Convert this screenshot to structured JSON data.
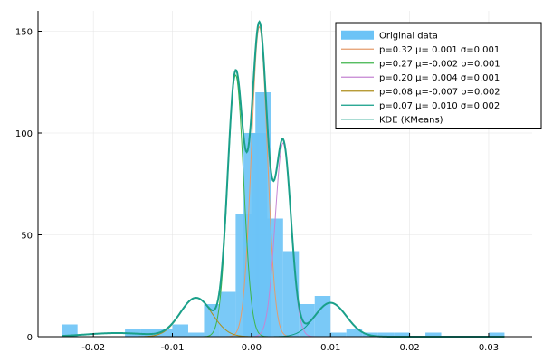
{
  "chart_data": {
    "type": "histogram-with-density",
    "x_ticks": [
      -0.02,
      -0.01,
      0.0,
      0.01,
      0.02,
      0.03
    ],
    "x_tick_labels": [
      "-0.02",
      "-0.01",
      "0.00",
      "0.01",
      "0.02",
      "0.03"
    ],
    "y_ticks": [
      0,
      50,
      100,
      150
    ],
    "y_tick_labels": [
      "0",
      "50",
      "100",
      "150"
    ],
    "xlim": [
      -0.027,
      0.0355
    ],
    "ylim": [
      0,
      160
    ],
    "grid": true,
    "legend_position": "top-right",
    "histogram": {
      "name": "Original data",
      "color": "#6cc3f6",
      "bin_width": 0.002,
      "bins": [
        {
          "x0": -0.024,
          "count": 6
        },
        {
          "x0": -0.016,
          "count": 4
        },
        {
          "x0": -0.014,
          "count": 4
        },
        {
          "x0": -0.012,
          "count": 4
        },
        {
          "x0": -0.01,
          "count": 6
        },
        {
          "x0": -0.008,
          "count": 2
        },
        {
          "x0": -0.006,
          "count": 16
        },
        {
          "x0": -0.004,
          "count": 22
        },
        {
          "x0": -0.002,
          "count": 60
        },
        {
          "x0": -0.001,
          "count": 100
        },
        {
          "x0": 0.0,
          "count": 100
        },
        {
          "x0": 0.0005,
          "count": 120
        },
        {
          "x0": 0.002,
          "count": 58
        },
        {
          "x0": 0.004,
          "count": 42
        },
        {
          "x0": 0.006,
          "count": 16
        },
        {
          "x0": 0.008,
          "count": 20
        },
        {
          "x0": 0.01,
          "count": 2
        },
        {
          "x0": 0.012,
          "count": 4
        },
        {
          "x0": 0.014,
          "count": 2
        },
        {
          "x0": 0.016,
          "count": 2
        },
        {
          "x0": 0.018,
          "count": 2
        },
        {
          "x0": 0.022,
          "count": 2
        },
        {
          "x0": 0.03,
          "count": 2
        }
      ]
    },
    "components": [
      {
        "name": "p=0.32 μ= 0.001 σ=0.001",
        "weight": 0.32,
        "mu": 0.001,
        "sigma": 0.001,
        "color": "#e59c6b"
      },
      {
        "name": "p=0.27 μ=-0.002 σ=0.001",
        "weight": 0.27,
        "mu": -0.002,
        "sigma": 0.001,
        "color": "#3fb54b"
      },
      {
        "name": "p=0.20 μ= 0.004 σ=0.001",
        "weight": 0.2,
        "mu": 0.004,
        "sigma": 0.001,
        "color": "#c585d3"
      },
      {
        "name": "p=0.08 μ=-0.007 σ=0.002",
        "weight": 0.08,
        "mu": -0.007,
        "sigma": 0.002,
        "color": "#ae8e1c"
      },
      {
        "name": "p=0.07 μ= 0.010 σ=0.002",
        "weight": 0.07,
        "mu": 0.01,
        "sigma": 0.002,
        "color": "#119d87"
      }
    ],
    "kde": {
      "name": "KDE (KMeans)",
      "color": "#1aa08a"
    }
  }
}
